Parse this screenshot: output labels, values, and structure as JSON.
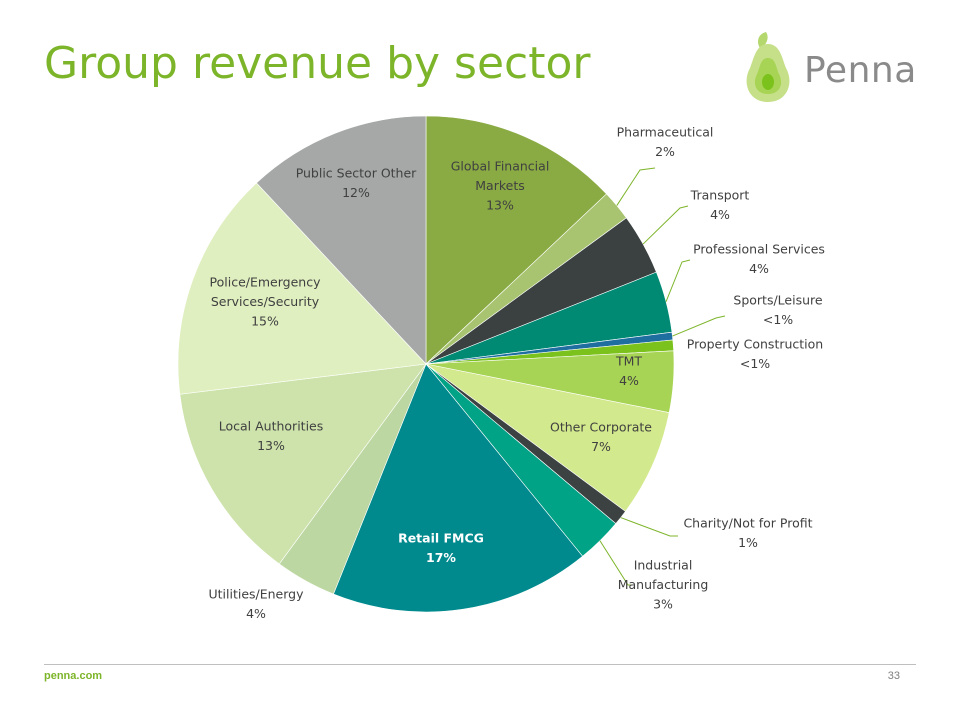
{
  "title": "Group revenue by sector",
  "logo": {
    "text": "Penna",
    "icon": "pear-icon",
    "leaf_color": "#b5d86e",
    "body_color": "#c6e08a",
    "core_color": "#8cc63f"
  },
  "footer": {
    "url": "penna.com",
    "page_number": "33"
  },
  "colors": {
    "accent": "#7db52a",
    "dark_label": "#404040",
    "light_label": "#ffffff"
  },
  "chart_data": {
    "type": "pie",
    "title": "Group revenue by sector",
    "start_angle_deg": 0,
    "direction": "clockwise",
    "slices": [
      {
        "name": "Global Financial Markets",
        "value": 13,
        "display": "13%",
        "color": "#8aab44",
        "label_lines": [
          "Global Financial",
          "Markets"
        ],
        "label_color": "#404040",
        "bold": false
      },
      {
        "name": "Pharmaceutical",
        "value": 2,
        "display": "2%",
        "color": "#a8c470",
        "label_lines": [
          "Pharmaceutical"
        ],
        "label_color": "#404040",
        "bold": false
      },
      {
        "name": "Transport",
        "value": 4,
        "display": "4%",
        "color": "#3b4141",
        "label_lines": [
          "Transport"
        ],
        "label_color": "#404040",
        "bold": false
      },
      {
        "name": "Professional Services",
        "value": 4,
        "display": "4%",
        "color": "#008a74",
        "label_lines": [
          "Professional Services"
        ],
        "label_color": "#404040",
        "bold": false
      },
      {
        "name": "Sports/Leisure",
        "value": 0.5,
        "display": "<1%",
        "color": "#1f6ea0",
        "label_lines": [
          "Sports/Leisure"
        ],
        "label_color": "#404040",
        "bold": false
      },
      {
        "name": "Property Construction",
        "value": 0.7,
        "display": "<1%",
        "color": "#7cc21c",
        "label_lines": [
          "Property Construction"
        ],
        "label_color": "#404040",
        "bold": false
      },
      {
        "name": "TMT",
        "value": 4,
        "display": "4%",
        "color": "#a8d455",
        "label_lines": [
          "TMT"
        ],
        "label_color": "#404040",
        "bold": false
      },
      {
        "name": "Other Corporate",
        "value": 7,
        "display": "7%",
        "color": "#d3e98d",
        "label_lines": [
          "Other Corporate"
        ],
        "label_color": "#404040",
        "bold": false
      },
      {
        "name": "Charity/Not for Profit",
        "value": 1,
        "display": "1%",
        "color": "#3c4242",
        "label_lines": [
          "Charity/Not for Profit"
        ],
        "label_color": "#404040",
        "bold": false
      },
      {
        "name": "Industrial Manufacturing",
        "value": 3,
        "display": "3%",
        "color": "#00a386",
        "label_lines": [
          "Industrial",
          "Manufacturing"
        ],
        "label_color": "#404040",
        "bold": false
      },
      {
        "name": "Retail FMCG",
        "value": 17,
        "display": "17%",
        "color": "#008a8e",
        "label_lines": [
          "Retail FMCG"
        ],
        "label_color": "#ffffff",
        "bold": true
      },
      {
        "name": "Utilities/Energy",
        "value": 4,
        "display": "4%",
        "color": "#bcd7a2",
        "label_lines": [
          "Utilities/Energy"
        ],
        "label_color": "#404040",
        "bold": false
      },
      {
        "name": "Local Authorities",
        "value": 13,
        "display": "13%",
        "color": "#cde3ab",
        "label_lines": [
          "Local Authorities"
        ],
        "label_color": "#404040",
        "bold": false
      },
      {
        "name": "Police/Emergency Services/Security",
        "value": 15,
        "display": "15%",
        "color": "#e0efc0",
        "label_lines": [
          "Police/Emergency",
          "Services/Security"
        ],
        "label_color": "#404040",
        "bold": false
      },
      {
        "name": "Public Sector Other",
        "value": 12,
        "display": "12%",
        "color": "#a6a8a8",
        "label_lines": [
          "Public Sector Other"
        ],
        "label_color": "#404040",
        "bold": false
      }
    ]
  }
}
